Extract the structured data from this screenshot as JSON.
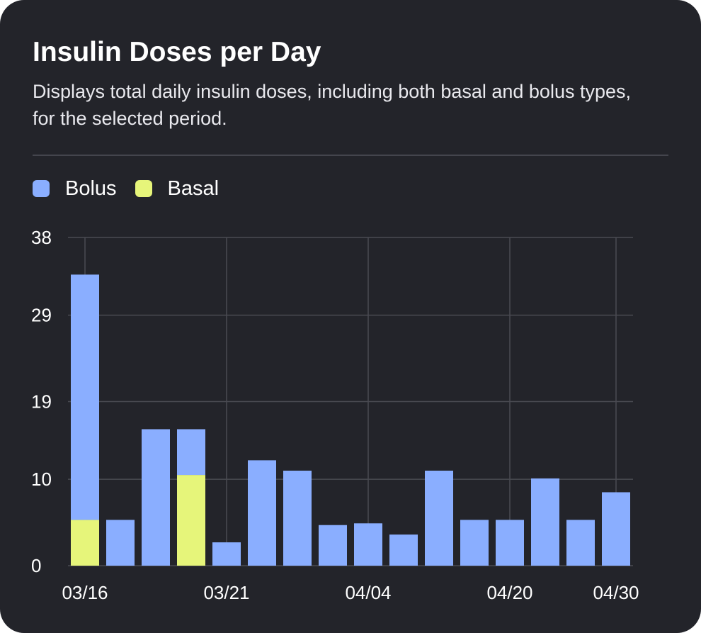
{
  "card": {
    "title": "Insulin Doses per Day",
    "subtitle": "Displays total daily insulin doses, including both basal and bolus types, for the selected period."
  },
  "colors": {
    "background": "#23242a",
    "bolus": "#8aaeff",
    "basal": "#e6f57a",
    "grid": "#4a4b52"
  },
  "legend": [
    {
      "label": "Bolus",
      "color": "#8aaeff"
    },
    {
      "label": "Basal",
      "color": "#e6f57a"
    }
  ],
  "chart_data": {
    "type": "bar",
    "stacked": true,
    "title": "Insulin Doses per Day",
    "xlabel": "",
    "ylabel": "",
    "ylim": [
      0,
      38
    ],
    "y_ticks": [
      0,
      10,
      19,
      29,
      38
    ],
    "x_tick_labels": [
      {
        "index": 0,
        "label": "03/16"
      },
      {
        "index": 4,
        "label": "03/21"
      },
      {
        "index": 8,
        "label": "04/04"
      },
      {
        "index": 12,
        "label": "04/20"
      },
      {
        "index": 15,
        "label": "04/30"
      }
    ],
    "bar_count": 16,
    "series": [
      {
        "name": "Basal",
        "color": "#e6f57a",
        "values": [
          5.3,
          0,
          0,
          10.5,
          0,
          0,
          0,
          0,
          0,
          0,
          0,
          0,
          0,
          0,
          0,
          0
        ]
      },
      {
        "name": "Bolus",
        "color": "#8aaeff",
        "values": [
          28.4,
          5.3,
          15.8,
          5.3,
          2.7,
          12.2,
          11.0,
          4.7,
          4.9,
          3.6,
          11.0,
          5.3,
          5.3,
          10.1,
          5.3,
          8.5
        ]
      }
    ],
    "grid": true,
    "legend_position": "top-left"
  }
}
